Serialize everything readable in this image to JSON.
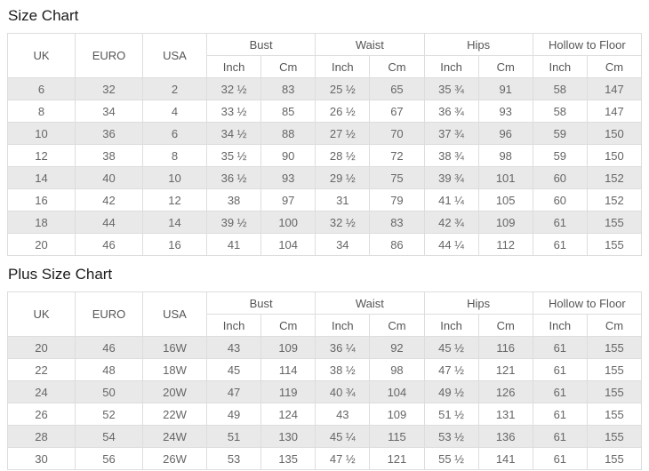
{
  "colors": {
    "stripe_row_bg": "#e9e9e9",
    "table_border": "#dddddd",
    "cell_text": "#666666",
    "title_text": "#1a1a1a"
  },
  "column_keys": [
    "uk",
    "euro",
    "usa",
    "bust-inch",
    "bust-cm",
    "waist-inch",
    "waist-cm",
    "hips-inch",
    "hips-cm",
    "hollow-inch",
    "hollow-cm"
  ],
  "tables": [
    {
      "title": "Size Chart",
      "size_headers": [
        "UK",
        "EURO",
        "USA"
      ],
      "group_headers": [
        "Bust",
        "Waist",
        "Hips",
        "Hollow to Floor"
      ],
      "units": [
        "Inch",
        "Cm"
      ],
      "rows": [
        [
          "6",
          "32",
          "2",
          "32 ½",
          "83",
          "25 ½",
          "65",
          "35 ¾",
          "91",
          "58",
          "147"
        ],
        [
          "8",
          "34",
          "4",
          "33 ½",
          "85",
          "26 ½",
          "67",
          "36 ¾",
          "93",
          "58",
          "147"
        ],
        [
          "10",
          "36",
          "6",
          "34 ½",
          "88",
          "27 ½",
          "70",
          "37 ¾",
          "96",
          "59",
          "150"
        ],
        [
          "12",
          "38",
          "8",
          "35 ½",
          "90",
          "28 ½",
          "72",
          "38 ¾",
          "98",
          "59",
          "150"
        ],
        [
          "14",
          "40",
          "10",
          "36 ½",
          "93",
          "29 ½",
          "75",
          "39 ¾",
          "101",
          "60",
          "152"
        ],
        [
          "16",
          "42",
          "12",
          "38",
          "97",
          "31",
          "79",
          "41 ¼",
          "105",
          "60",
          "152"
        ],
        [
          "18",
          "44",
          "14",
          "39 ½",
          "100",
          "32 ½",
          "83",
          "42 ¾",
          "109",
          "61",
          "155"
        ],
        [
          "20",
          "46",
          "16",
          "41",
          "104",
          "34",
          "86",
          "44 ¼",
          "112",
          "61",
          "155"
        ]
      ]
    },
    {
      "title": "Plus Size Chart",
      "size_headers": [
        "UK",
        "EURO",
        "USA"
      ],
      "group_headers": [
        "Bust",
        "Waist",
        "Hips",
        "Hollow to Floor"
      ],
      "units": [
        "Inch",
        "Cm"
      ],
      "rows": [
        [
          "20",
          "46",
          "16W",
          "43",
          "109",
          "36 ¼",
          "92",
          "45 ½",
          "116",
          "61",
          "155"
        ],
        [
          "22",
          "48",
          "18W",
          "45",
          "114",
          "38 ½",
          "98",
          "47 ½",
          "121",
          "61",
          "155"
        ],
        [
          "24",
          "50",
          "20W",
          "47",
          "119",
          "40 ¾",
          "104",
          "49 ½",
          "126",
          "61",
          "155"
        ],
        [
          "26",
          "52",
          "22W",
          "49",
          "124",
          "43",
          "109",
          "51 ½",
          "131",
          "61",
          "155"
        ],
        [
          "28",
          "54",
          "24W",
          "51",
          "130",
          "45 ¼",
          "115",
          "53 ½",
          "136",
          "61",
          "155"
        ],
        [
          "30",
          "56",
          "26W",
          "53",
          "135",
          "47 ½",
          "121",
          "55 ½",
          "141",
          "61",
          "155"
        ]
      ]
    }
  ]
}
